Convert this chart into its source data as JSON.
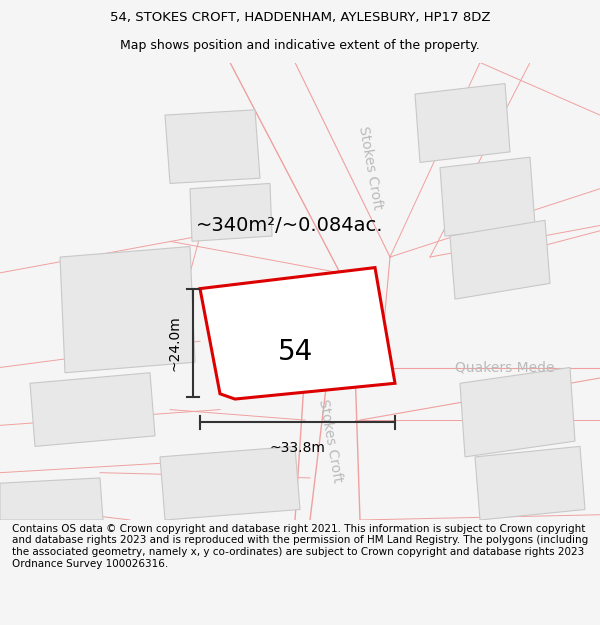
{
  "title_line1": "54, STOKES CROFT, HADDENHAM, AYLESBURY, HP17 8DZ",
  "title_line2": "Map shows position and indicative extent of the property.",
  "footer": "Contains OS data © Crown copyright and database right 2021. This information is subject to Crown copyright and database rights 2023 and is reproduced with the permission of HM Land Registry. The polygons (including the associated geometry, namely x, y co-ordinates) are subject to Crown copyright and database rights 2023 Ordnance Survey 100026316.",
  "area_label": "~340m²/~0.084ac.",
  "width_label": "~33.8m",
  "height_label": "~24.0m",
  "number_label": "54",
  "bg_color": "#f5f5f5",
  "map_bg": "#ffffff",
  "building_fill": "#e8e8e8",
  "building_edge": "#c8c8c8",
  "highlight_color": "#dd0000",
  "pink_line": "#f0a0a0",
  "dim_line_color": "#333333",
  "road_label_color": "#bbbbbb",
  "title_fontsize": 9.5,
  "footer_fontsize": 7.5,
  "area_fontsize": 14,
  "number_fontsize": 20,
  "dim_fontsize": 10,
  "road_fontsize": 10
}
